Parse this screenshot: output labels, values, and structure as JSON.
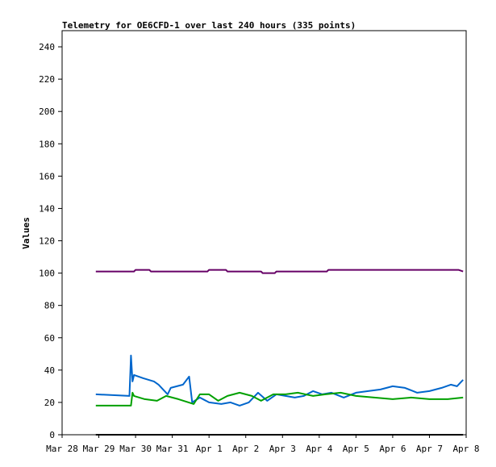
{
  "chart_data": {
    "type": "line",
    "title": "Telemetry for OE6CFD-1 over last 240 hours (335 points)",
    "xlabel": "",
    "ylabel": "Values",
    "ylim": [
      0,
      250
    ],
    "yticks": [
      0,
      20,
      40,
      60,
      80,
      100,
      120,
      140,
      160,
      180,
      200,
      220,
      240
    ],
    "xlim": [
      "2024-03-28T00:00",
      "2024-04-08T00:00"
    ],
    "xticks": [
      {
        "label": "Mar 28",
        "x": "2024-03-28T00:00"
      },
      {
        "label": "Mar 29",
        "x": "2024-03-29T00:00"
      },
      {
        "label": "Mar 30",
        "x": "2024-03-30T00:00"
      },
      {
        "label": "Mar 31",
        "x": "2024-03-31T00:00"
      },
      {
        "label": "Apr 1",
        "x": "2024-04-01T00:00"
      },
      {
        "label": "Apr 2",
        "x": "2024-04-02T00:00"
      },
      {
        "label": "Apr 3",
        "x": "2024-04-03T00:00"
      },
      {
        "label": "Apr 4",
        "x": "2024-04-04T00:00"
      },
      {
        "label": "Apr 5",
        "x": "2024-04-05T00:00"
      },
      {
        "label": "Apr 6",
        "x": "2024-04-06T00:00"
      },
      {
        "label": "Apr 7",
        "x": "2024-04-07T00:00"
      },
      {
        "label": "Apr 8",
        "x": "2024-04-08T00:00"
      }
    ],
    "grid": false,
    "series": [
      {
        "color": "#660066",
        "x": [
          "2024-03-28T22:00",
          "2024-03-29T23:00",
          "2024-03-30T00:00",
          "2024-03-30T09:00",
          "2024-03-30T10:00",
          "2024-03-31T23:00",
          "2024-04-01T00:00",
          "2024-04-01T11:00",
          "2024-04-01T12:00",
          "2024-04-02T10:00",
          "2024-04-02T11:00",
          "2024-04-02T19:00",
          "2024-04-02T20:00",
          "2024-04-04T05:00",
          "2024-04-04T06:00",
          "2024-04-07T19:00",
          "2024-04-07T22:00"
        ],
        "values": [
          101,
          101,
          102,
          102,
          101,
          101,
          102,
          102,
          101,
          101,
          100,
          100,
          101,
          101,
          102,
          102,
          101
        ]
      },
      {
        "color": "#0066cc",
        "x": [
          "2024-03-28T22:00",
          "2024-03-29T20:00",
          "2024-03-29T21:00",
          "2024-03-29T22:00",
          "2024-03-29T23:00",
          "2024-03-30T02:00",
          "2024-03-30T05:00",
          "2024-03-30T12:00",
          "2024-03-30T15:00",
          "2024-03-30T21:00",
          "2024-03-30T23:00",
          "2024-03-31T07:00",
          "2024-03-31T11:00",
          "2024-03-31T13:00",
          "2024-03-31T18:00",
          "2024-04-01T00:00",
          "2024-04-01T08:00",
          "2024-04-01T14:00",
          "2024-04-01T20:00",
          "2024-04-02T02:00",
          "2024-04-02T08:00",
          "2024-04-02T14:00",
          "2024-04-02T20:00",
          "2024-04-03T02:00",
          "2024-04-03T08:00",
          "2024-04-03T14:00",
          "2024-04-03T20:00",
          "2024-04-04T02:00",
          "2024-04-04T08:00",
          "2024-04-04T16:00",
          "2024-04-05T00:00",
          "2024-04-05T08:00",
          "2024-04-05T16:00",
          "2024-04-06T00:00",
          "2024-04-06T08:00",
          "2024-04-06T16:00",
          "2024-04-07T00:00",
          "2024-04-07T08:00",
          "2024-04-07T14:00",
          "2024-04-07T18:00",
          "2024-04-07T22:00"
        ],
        "values": [
          25,
          24,
          49,
          33,
          37,
          36,
          35,
          33,
          31,
          25,
          29,
          31,
          36,
          20,
          23,
          20,
          19,
          20,
          18,
          20,
          26,
          21,
          25,
          24,
          23,
          24,
          27,
          25,
          26,
          23,
          26,
          27,
          28,
          30,
          29,
          26,
          27,
          29,
          31,
          30,
          34
        ]
      },
      {
        "color": "#00a000",
        "x": [
          "2024-03-28T22:00",
          "2024-03-29T21:00",
          "2024-03-29T22:00",
          "2024-03-29T23:00",
          "2024-03-30T06:00",
          "2024-03-30T14:00",
          "2024-03-30T20:00",
          "2024-03-31T04:00",
          "2024-03-31T14:00",
          "2024-03-31T18:00",
          "2024-04-01T00:00",
          "2024-04-01T06:00",
          "2024-04-01T12:00",
          "2024-04-01T20:00",
          "2024-04-02T04:00",
          "2024-04-02T10:00",
          "2024-04-02T18:00",
          "2024-04-03T02:00",
          "2024-04-03T10:00",
          "2024-04-03T20:00",
          "2024-04-04T04:00",
          "2024-04-04T14:00",
          "2024-04-05T00:00",
          "2024-04-05T12:00",
          "2024-04-06T00:00",
          "2024-04-06T12:00",
          "2024-04-07T00:00",
          "2024-04-07T12:00",
          "2024-04-07T22:00"
        ],
        "values": [
          18,
          18,
          26,
          24,
          22,
          21,
          24,
          22,
          19,
          25,
          25,
          21,
          24,
          26,
          24,
          21,
          25,
          25,
          26,
          24,
          25,
          26,
          24,
          23,
          22,
          23,
          22,
          22,
          23
        ]
      },
      {
        "color": "#000000",
        "x": [
          "2024-03-28T22:00",
          "2024-04-07T22:00"
        ],
        "values": [
          0,
          0
        ]
      }
    ]
  }
}
